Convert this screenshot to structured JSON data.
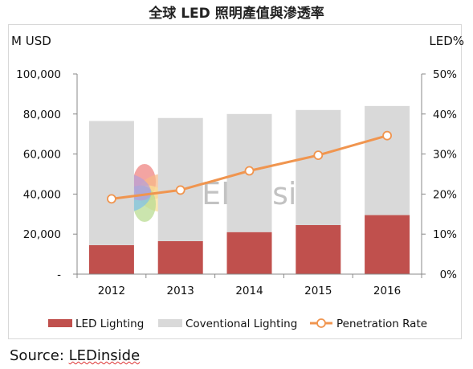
{
  "chart_data": {
    "type": "bar",
    "title": "全球 LED 照明產值與滲透率",
    "left_axis_unit": "M USD",
    "right_axis_unit": "LED%",
    "categories": [
      "2012",
      "2013",
      "2014",
      "2015",
      "2016"
    ],
    "series": [
      {
        "name": "LED Lighting",
        "type": "bar-stacked",
        "axis": "left",
        "color": "#c0504d",
        "values": [
          14500,
          16500,
          21000,
          24500,
          29500
        ]
      },
      {
        "name": "Coventional Lighting",
        "type": "bar-stacked",
        "axis": "left",
        "color": "#d9d9d9",
        "values": [
          62000,
          61500,
          59000,
          57500,
          54500
        ]
      },
      {
        "name": "Penetration Rate",
        "type": "line",
        "axis": "right",
        "color": "#f0954f",
        "marker": "circle-open",
        "values": [
          18.8,
          21,
          25.8,
          29.7,
          34.6
        ]
      }
    ],
    "ylim_left": [
      0,
      100000
    ],
    "ylim_right": [
      0,
      50
    ],
    "left_tick_labels": [
      "-",
      "20,000",
      "40,000",
      "60,000",
      "80,000",
      "100,000"
    ],
    "right_tick_labels": [
      "0%",
      "10%",
      "20%",
      "30%",
      "40%",
      "50%"
    ],
    "legend_position": "bottom",
    "grid": false
  },
  "watermark": {
    "text": "LEDinside",
    "petal_colors": [
      "#e7514e",
      "#f49b55",
      "#f6d36a",
      "#9ccc65",
      "#4fa8dc",
      "#9b78c6"
    ]
  },
  "source_prefix": "Source: ",
  "source_brand": "LEDinside"
}
